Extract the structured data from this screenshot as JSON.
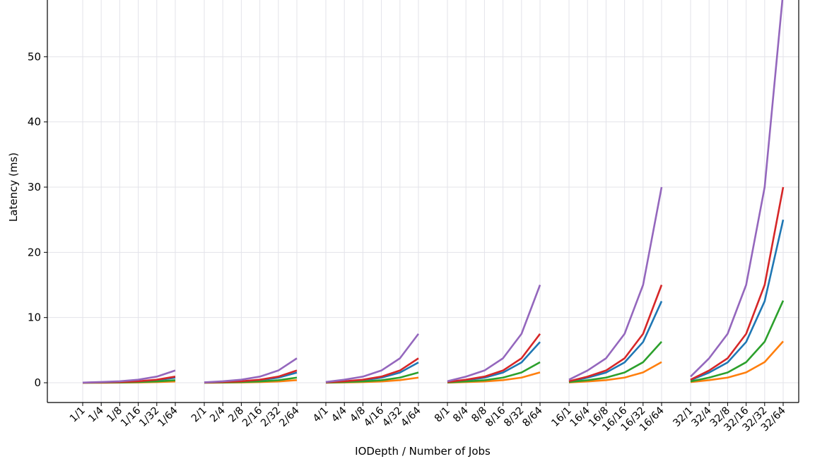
{
  "chart_data": {
    "type": "line",
    "title": "",
    "xlabel": "IODepth / Number of Jobs",
    "ylabel": "Latency (ms)",
    "ylim": [
      -3.03,
      58.7
    ],
    "yticks": [
      0,
      10,
      20,
      30,
      40,
      50
    ],
    "grid": true,
    "legend": "none visible",
    "groups": [
      [
        "1/1",
        "1/4",
        "1/8",
        "1/16",
        "1/32",
        "1/64"
      ],
      [
        "2/1",
        "2/4",
        "2/8",
        "2/16",
        "2/32",
        "2/64"
      ],
      [
        "4/1",
        "4/4",
        "4/8",
        "4/16",
        "4/32",
        "4/64"
      ],
      [
        "8/1",
        "8/4",
        "8/8",
        "8/16",
        "8/32",
        "8/64"
      ],
      [
        "16/1",
        "16/4",
        "16/8",
        "16/16",
        "16/32",
        "16/64"
      ],
      [
        "32/1",
        "32/4",
        "32/8",
        "32/16",
        "32/32",
        "32/64"
      ]
    ],
    "series": [
      {
        "color": "#1f77b4",
        "values": [
          [
            0.01,
            0.05,
            0.1,
            0.2,
            0.39,
            0.78
          ],
          [
            0.02,
            0.1,
            0.2,
            0.39,
            0.78,
            1.56
          ],
          [
            0.05,
            0.2,
            0.39,
            0.78,
            1.56,
            3.12
          ],
          [
            0.1,
            0.39,
            0.78,
            1.56,
            3.12,
            6.25
          ],
          [
            0.2,
            0.78,
            1.56,
            3.12,
            6.25,
            12.5
          ],
          [
            0.39,
            1.56,
            3.12,
            6.25,
            12.5,
            25
          ]
        ]
      },
      {
        "color": "#ff7f0e",
        "values": [
          [
            0,
            0.01,
            0.02,
            0.05,
            0.1,
            0.2
          ],
          [
            0.01,
            0.02,
            0.05,
            0.1,
            0.2,
            0.4
          ],
          [
            0.01,
            0.05,
            0.1,
            0.2,
            0.4,
            0.79
          ],
          [
            0.02,
            0.1,
            0.2,
            0.4,
            0.79,
            1.59
          ],
          [
            0.05,
            0.2,
            0.4,
            0.79,
            1.59,
            3.17
          ],
          [
            0.1,
            0.4,
            0.79,
            1.59,
            3.17,
            6.35
          ]
        ]
      },
      {
        "color": "#2ca02c",
        "values": [
          [
            0.01,
            0.02,
            0.05,
            0.1,
            0.2,
            0.39
          ],
          [
            0.01,
            0.05,
            0.1,
            0.2,
            0.39,
            0.79
          ],
          [
            0.02,
            0.1,
            0.2,
            0.39,
            0.79,
            1.57
          ],
          [
            0.05,
            0.2,
            0.39,
            0.79,
            1.57,
            3.15
          ],
          [
            0.1,
            0.39,
            0.79,
            1.57,
            3.15,
            6.3
          ],
          [
            0.2,
            0.79,
            1.57,
            3.15,
            6.3,
            12.6
          ]
        ]
      },
      {
        "color": "#d62728",
        "values": [
          [
            0.01,
            0.06,
            0.12,
            0.23,
            0.47,
            0.94
          ],
          [
            0.03,
            0.12,
            0.23,
            0.47,
            0.94,
            1.88
          ],
          [
            0.06,
            0.23,
            0.47,
            0.94,
            1.88,
            3.75
          ],
          [
            0.12,
            0.47,
            0.94,
            1.88,
            3.75,
            7.5
          ],
          [
            0.23,
            0.94,
            1.88,
            3.75,
            7.5,
            15
          ],
          [
            0.47,
            1.88,
            3.75,
            7.5,
            15,
            30
          ]
        ]
      },
      {
        "color": "#9467bd",
        "values": [
          [
            0.03,
            0.12,
            0.23,
            0.47,
            0.94,
            1.88
          ],
          [
            0.06,
            0.23,
            0.47,
            0.94,
            1.88,
            3.75
          ],
          [
            0.12,
            0.47,
            0.94,
            1.88,
            3.75,
            7.5
          ],
          [
            0.23,
            0.94,
            1.88,
            3.75,
            7.5,
            15
          ],
          [
            0.47,
            1.88,
            3.75,
            7.5,
            15,
            30
          ],
          [
            0.94,
            3.75,
            7.5,
            15,
            30,
            60
          ]
        ]
      }
    ]
  }
}
